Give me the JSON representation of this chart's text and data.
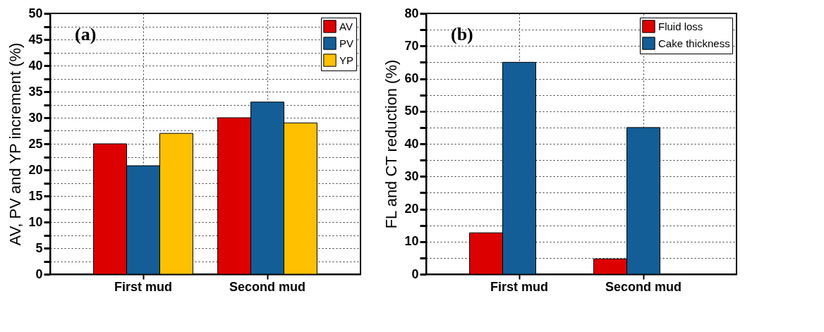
{
  "chart_data": [
    {
      "type": "bar",
      "categories": [
        "First mud",
        "Second mud"
      ],
      "ylabel": "AV, PV and YP increment (%)",
      "ylim": [
        0,
        50
      ],
      "yticks": [
        0,
        {
          "value": 2.5,
          "label": null
        },
        5,
        {
          "value": 7.5,
          "label": null
        },
        10,
        {
          "value": 12.5,
          "label": null
        },
        15,
        {
          "value": 17.5,
          "label": null
        },
        20,
        {
          "value": 22.5,
          "label": null
        },
        25,
        {
          "value": 27.5,
          "label": null
        },
        30,
        {
          "value": 32.5,
          "label": null
        },
        35,
        {
          "value": 37.5,
          "label": null
        },
        40,
        {
          "value": 42.5,
          "label": null
        },
        45,
        {
          "value": 47.5,
          "label": null
        },
        50
      ],
      "grid": true,
      "legend": "top right",
      "annotations": [
        "(a)"
      ],
      "series": [
        {
          "name": "AV",
          "color": "#dd0000",
          "values": [
            25,
            30
          ]
        },
        {
          "name": "PV",
          "color": "#135e96",
          "values": [
            20.8,
            33
          ]
        },
        {
          "name": "YP",
          "color": "#ffc000",
          "values": [
            27,
            29
          ]
        }
      ]
    },
    {
      "type": "bar",
      "categories": [
        "First mud",
        "Second mud"
      ],
      "ylabel": "FL and CT reduction (%)",
      "ylim": [
        0,
        80
      ],
      "yticks": [
        0,
        {
          "value": 5,
          "label": null
        },
        10,
        {
          "value": 15,
          "label": null
        },
        20,
        {
          "value": 25,
          "label": null
        },
        30,
        {
          "value": 35,
          "label": null
        },
        40,
        {
          "value": 45,
          "label": null
        },
        50,
        {
          "value": 55,
          "label": null
        },
        60,
        {
          "value": 65,
          "label": null
        },
        70,
        {
          "value": 75,
          "label": null
        },
        80
      ],
      "grid": true,
      "legend": "top right",
      "annotations": [
        "(b)"
      ],
      "series": [
        {
          "name": "Fluid loss",
          "color": "#dd0000",
          "values": [
            12.7,
            4.7
          ]
        },
        {
          "name": "Cake thickness",
          "color": "#135e96",
          "values": [
            65,
            45
          ]
        }
      ]
    }
  ]
}
